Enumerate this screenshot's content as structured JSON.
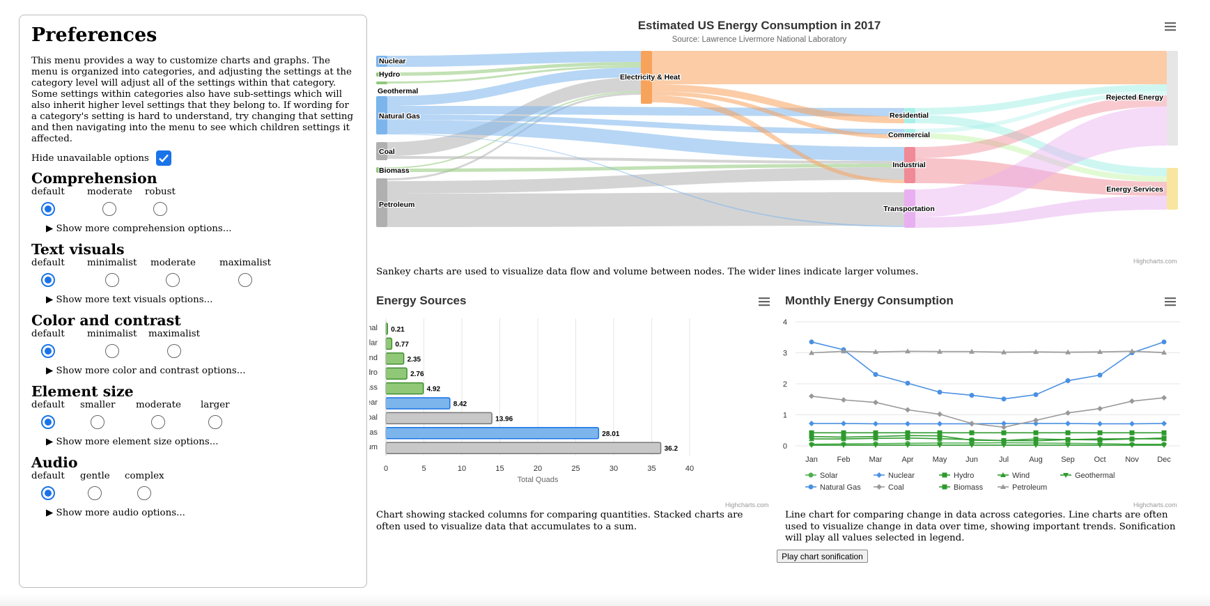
{
  "prefs": {
    "title": "Preferences",
    "intro": "This menu provides a way to customize charts and graphs. The menu is organized into categories, and adjusting the settings at the category level will adjust all of the settings within that category. Some settings within categories also have sub-settings which will also inherit higher level settings that they belong to. If wording for a category's setting is hard to understand, try changing that setting and then navigating into the menu to see which children settings it affected.",
    "hide_label": "Hide unavailable options",
    "hide_checked": true,
    "categories": [
      {
        "name": "Comprehension",
        "options": [
          "default",
          "moderate",
          "robust"
        ],
        "selected": 0,
        "more": "▶ Show more comprehension options..."
      },
      {
        "name": "Text visuals",
        "options": [
          "default",
          "minimalist",
          "moderate",
          "maximalist"
        ],
        "selected": 0,
        "more": "▶ Show more text visuals options..."
      },
      {
        "name": "Color and contrast",
        "options": [
          "default",
          "minimalist",
          "maximalist"
        ],
        "selected": 0,
        "more": "▶ Show more color and contrast options..."
      },
      {
        "name": "Element size",
        "options": [
          "default",
          "smaller",
          "moderate",
          "larger"
        ],
        "selected": 0,
        "more": "▶ Show more element size options..."
      },
      {
        "name": "Audio",
        "options": [
          "default",
          "gentle",
          "complex"
        ],
        "selected": 0,
        "more": "▶ Show more audio options..."
      }
    ]
  },
  "sankey": {
    "title": "Estimated US Energy Consumption in 2017",
    "subtitle": "Source: Lawrence Livermore National Laboratory",
    "credit": "Highcharts.com",
    "caption": "Sankey charts are used to visualize data flow and volume between nodes. The wider lines indicate larger volumes.",
    "nodes": [
      "Nuclear",
      "Hydro",
      "Geothermal",
      "Natural Gas",
      "Coal",
      "Biomass",
      "Petroleum",
      "Electricity & Heat",
      "Residential",
      "Commercial",
      "Industrial",
      "Transportation",
      "Rejected Energy",
      "Energy Services"
    ],
    "colors": {
      "blue": "#7cb5ec",
      "green": "#90c878",
      "gray": "#b0b0b0",
      "orange": "#f7a35c",
      "teal": "#a8f0e8",
      "red": "#f08a96",
      "purple": "#e8b0f0",
      "yellow": "#f8e6a0",
      "lightgray": "#e6e6e6"
    }
  },
  "bar_chart": {
    "title": "Energy Sources",
    "credit": "Highcharts.com",
    "caption": "Chart showing stacked columns for comparing quantities. Stacked charts are often used to visualize data that accumulates to a sum.",
    "x_ticks": [
      "0",
      "5",
      "10",
      "15",
      "20",
      "25",
      "30",
      "35",
      "40"
    ]
  },
  "line_chart": {
    "title": "Monthly Energy Consumption",
    "credit": "Highcharts.com",
    "caption": "Line chart for comparing change in data across categories. Line charts are often used to visualize change in data over time, showing important trends. Sonification will play all values selected in legend.",
    "y_ticks": [
      "0",
      "1",
      "2",
      "3",
      "4"
    ],
    "play_button": "Play chart sonification"
  },
  "chart_data": [
    {
      "type": "sankey",
      "title": "Estimated US Energy Consumption in 2017",
      "subtitle": "Source: Lawrence Livermore National Laboratory",
      "nodes": [
        "Nuclear",
        "Hydro",
        "Geothermal",
        "Natural Gas",
        "Coal",
        "Biomass",
        "Petroleum",
        "Electricity & Heat",
        "Residential",
        "Commercial",
        "Industrial",
        "Transportation",
        "Rejected Energy",
        "Energy Services"
      ]
    },
    {
      "type": "bar",
      "title": "Energy Sources",
      "categories": [
        "Geothermal",
        "Solar",
        "Wind",
        "Hydro",
        "Biomass",
        "Nuclear",
        "Coal",
        "Natural Gas",
        "Petroleum"
      ],
      "values": [
        0.21,
        0.77,
        2.35,
        2.76,
        4.92,
        8.42,
        13.96,
        28.01,
        36.2
      ],
      "colors": [
        "#90c878",
        "#90c878",
        "#90c878",
        "#90c878",
        "#90c878",
        "#7cb5ec",
        "#c8c8c8",
        "#7cb5ec",
        "#c8c8c8"
      ],
      "xlabel": "Total Quads",
      "xlim": [
        0,
        40
      ]
    },
    {
      "type": "line",
      "title": "Monthly Energy Consumption",
      "categories": [
        "Jan",
        "Feb",
        "Mar",
        "Apr",
        "May",
        "Jun",
        "Jul",
        "Aug",
        "Sep",
        "Oct",
        "Nov",
        "Dec"
      ],
      "ylim": [
        0,
        4
      ],
      "series": [
        {
          "name": "Solar",
          "color": "#4caf50",
          "marker": "circle",
          "values": [
            0.05,
            0.06,
            0.07,
            0.08,
            0.09,
            0.09,
            0.1,
            0.09,
            0.08,
            0.07,
            0.05,
            0.05
          ]
        },
        {
          "name": "Nuclear",
          "color": "#4a90e2",
          "marker": "diamond",
          "values": [
            0.72,
            0.72,
            0.71,
            0.71,
            0.71,
            0.71,
            0.72,
            0.72,
            0.72,
            0.71,
            0.71,
            0.72
          ]
        },
        {
          "name": "Hydro",
          "color": "#2e9a2e",
          "marker": "square",
          "values": [
            0.3,
            0.28,
            0.3,
            0.33,
            0.32,
            0.18,
            0.17,
            0.22,
            0.2,
            0.19,
            0.22,
            0.25
          ]
        },
        {
          "name": "Wind",
          "color": "#2e9a2e",
          "marker": "triangle",
          "values": [
            0.22,
            0.22,
            0.24,
            0.25,
            0.23,
            0.2,
            0.17,
            0.16,
            0.2,
            0.22,
            0.23,
            0.22
          ]
        },
        {
          "name": "Geothermal",
          "color": "#2e9a2e",
          "marker": "triangle-down",
          "values": [
            0.02,
            0.02,
            0.02,
            0.02,
            0.02,
            0.02,
            0.02,
            0.02,
            0.02,
            0.02,
            0.02,
            0.02
          ]
        },
        {
          "name": "Natural Gas",
          "color": "#4a90e2",
          "marker": "circle",
          "values": [
            3.35,
            3.1,
            2.3,
            2.02,
            1.73,
            1.63,
            1.51,
            1.65,
            2.1,
            2.28,
            3.0,
            3.35
          ]
        },
        {
          "name": "Coal",
          "color": "#999999",
          "marker": "diamond",
          "values": [
            1.6,
            1.48,
            1.4,
            1.16,
            1.02,
            0.72,
            0.6,
            0.82,
            1.06,
            1.2,
            1.44,
            1.55
          ]
        },
        {
          "name": "Biomass",
          "color": "#2e9a2e",
          "marker": "square",
          "values": [
            0.42,
            0.42,
            0.42,
            0.42,
            0.42,
            0.42,
            0.42,
            0.42,
            0.42,
            0.42,
            0.42,
            0.42
          ]
        },
        {
          "name": "Petroleum",
          "color": "#999999",
          "marker": "triangle",
          "values": [
            3.0,
            3.05,
            3.03,
            3.05,
            3.04,
            3.04,
            3.02,
            3.03,
            3.02,
            3.03,
            3.05,
            3.01
          ]
        }
      ]
    }
  ]
}
